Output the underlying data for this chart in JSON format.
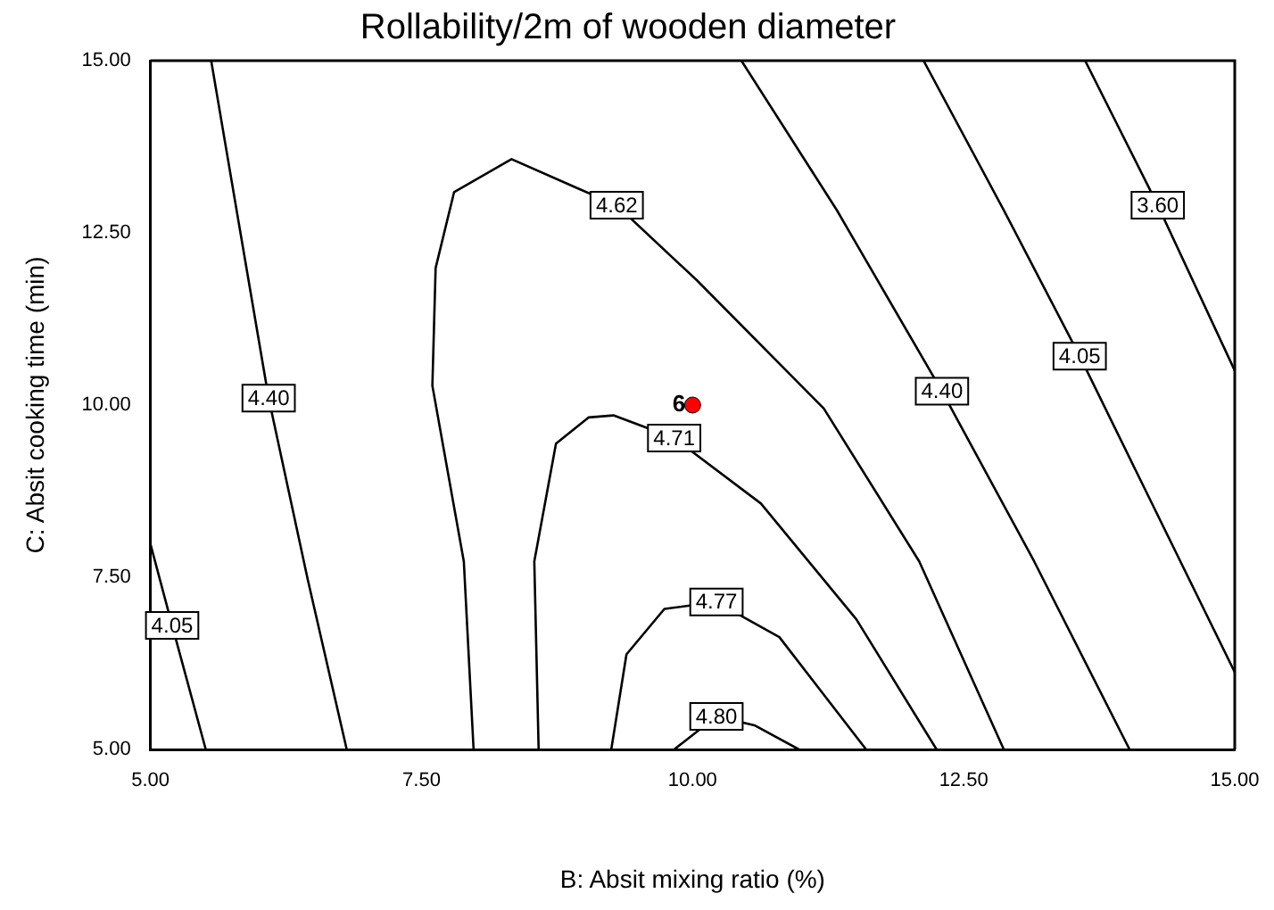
{
  "chart_data": {
    "type": "line",
    "title": "Rollability/2m of wooden diameter",
    "xlabel": "B: Absit mixing ratio (%)",
    "ylabel": "C: Absit cooking time (min)",
    "xlim": [
      5,
      15
    ],
    "ylim": [
      5,
      15
    ],
    "xticks": [
      {
        "value": 5,
        "label": "5.00"
      },
      {
        "value": 7.5,
        "label": "7.50"
      },
      {
        "value": 10,
        "label": "10.00"
      },
      {
        "value": 12.5,
        "label": "12.50"
      },
      {
        "value": 15,
        "label": "15.00"
      }
    ],
    "yticks": [
      {
        "value": 5,
        "label": "5.00"
      },
      {
        "value": 7.5,
        "label": "7.50"
      },
      {
        "value": 10,
        "label": "10.00"
      },
      {
        "value": 12.5,
        "label": "12.50"
      },
      {
        "value": 15,
        "label": "15.00"
      }
    ],
    "grid": false,
    "legend": false,
    "marker": "none",
    "line_style": "solid",
    "series": [
      {
        "color": "#000000",
        "x": [
          5,
          5.2,
          5.51
        ],
        "values": [
          7.98,
          6.8,
          5
        ]
      },
      {
        "color": "#000000",
        "x": [
          5.56,
          5.83,
          6.09,
          6.45,
          6.81
        ],
        "values": [
          15,
          12.5,
          10.1,
          7.47,
          5
        ]
      },
      {
        "color": "#000000",
        "x": [
          7.98,
          7.89,
          7.6,
          7.63,
          7.8,
          8.33,
          8.92,
          9.3,
          10.04,
          11.21,
          12.09,
          12.87
        ],
        "values": [
          5,
          7.73,
          10.28,
          11.99,
          13.09,
          13.57,
          13.16,
          12.9,
          11.81,
          9.95,
          7.73,
          5
        ]
      },
      {
        "color": "#000000",
        "x": [
          8.58,
          8.54,
          8.74,
          9.04,
          9.27,
          9.83,
          10.63,
          11.51,
          12.25
        ],
        "values": [
          5,
          7.73,
          9.44,
          9.82,
          9.85,
          9.52,
          8.57,
          6.89,
          5
        ]
      },
      {
        "color": "#000000",
        "x": [
          9.25,
          9.39,
          9.74,
          10.22,
          10.8,
          11.6
        ],
        "values": [
          5,
          6.38,
          7.04,
          7.14,
          6.63,
          5
        ]
      },
      {
        "color": "#000000",
        "x": [
          9.83,
          10.22,
          10.57,
          10.98
        ],
        "values": [
          5,
          5.48,
          5.35,
          5
        ]
      },
      {
        "color": "#000000",
        "x": [
          10.45,
          11.33,
          12.3,
          13.15,
          14.03
        ],
        "values": [
          15,
          12.83,
          10.2,
          7.73,
          5
        ]
      },
      {
        "color": "#000000",
        "x": [
          12.13,
          12.87,
          13.57,
          15
        ],
        "values": [
          15,
          12.83,
          10.71,
          6.12
        ]
      },
      {
        "color": "#000000",
        "x": [
          13.62,
          14.29,
          15
        ],
        "values": [
          15,
          12.9,
          10.5
        ]
      },
      {
        "type": "scatter",
        "color": "#ff0000",
        "marker": "circle",
        "x": [
          10
        ],
        "values": [
          10
        ]
      }
    ],
    "annotations": [
      {
        "text": "4.05",
        "x": 5.2,
        "y": 6.8
      },
      {
        "text": "4.40",
        "x": 6.09,
        "y": 10.1
      },
      {
        "text": "4.62",
        "x": 9.3,
        "y": 12.9
      },
      {
        "text": "4.71",
        "x": 9.83,
        "y": 9.52
      },
      {
        "text": "4.77",
        "x": 10.22,
        "y": 7.14
      },
      {
        "text": "4.80",
        "x": 10.22,
        "y": 5.48
      },
      {
        "text": "4.40",
        "x": 12.3,
        "y": 10.2
      },
      {
        "text": "4.05",
        "x": 13.57,
        "y": 10.71
      },
      {
        "text": "3.60",
        "x": 14.29,
        "y": 12.9
      },
      {
        "text": "6",
        "x": 10,
        "y": 10
      }
    ]
  }
}
